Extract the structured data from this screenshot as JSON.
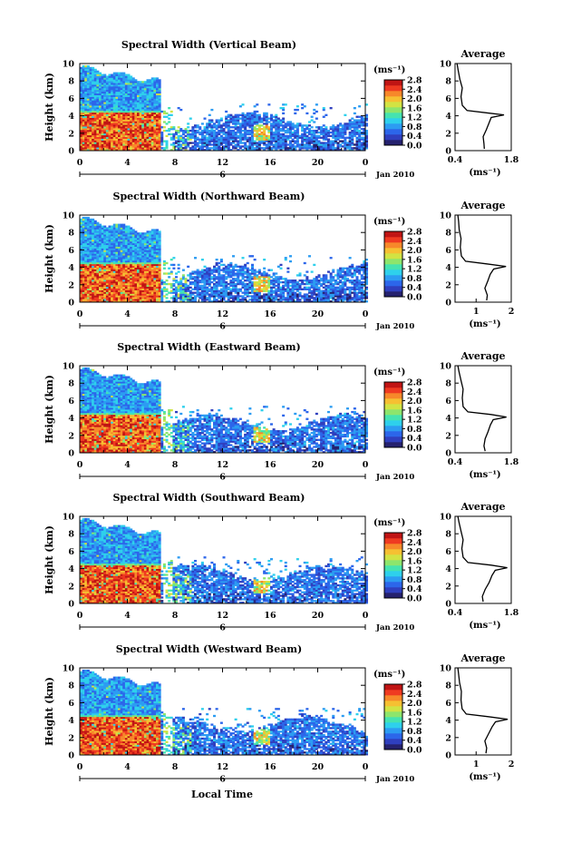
{
  "figure": {
    "xlabel": "Local Time",
    "date_label": "Jan 2010",
    "day_label": "6",
    "unit_label": "(ms⁻¹)",
    "avg_title": "Average",
    "avg_xlabel": "(ms⁻¹)",
    "ylabel": "Height (km)"
  },
  "colormap": [
    "#25216e",
    "#2f3fbe",
    "#2c66ea",
    "#2c9cf2",
    "#2ed0ec",
    "#45e3b0",
    "#8de56c",
    "#d2e343",
    "#f6c032",
    "#f7882a",
    "#ef3a21",
    "#c01414"
  ],
  "chart_data": [
    {
      "type": "heatmap",
      "title": "Spectral Width (Vertical Beam)",
      "x": [
        0,
        4,
        8,
        12,
        16,
        20,
        24
      ],
      "xlim": [
        0,
        24
      ],
      "x_ticklabels": [
        "0",
        "4",
        "8",
        "12",
        "16",
        "20",
        "0"
      ],
      "y_ticks": [
        0,
        2,
        4,
        6,
        8,
        10
      ],
      "ylim": [
        0,
        10
      ],
      "colorbar": {
        "ticks": [
          "0.0",
          "0.4",
          "0.8",
          "1.2",
          "1.6",
          "2.0",
          "2.4",
          "2.8"
        ],
        "range": [
          0,
          2.8
        ]
      },
      "average": {
        "xlim": [
          0.4,
          1.8
        ],
        "xticks": [
          "0.4",
          "1.8"
        ],
        "profile": [
          [
            0.2,
            1.13
          ],
          [
            0.8,
            1.12
          ],
          [
            1.6,
            1.1
          ],
          [
            2.4,
            1.18
          ],
          [
            3.2,
            1.25
          ],
          [
            3.8,
            1.3
          ],
          [
            4.1,
            1.62
          ],
          [
            4.3,
            1.25
          ],
          [
            4.6,
            0.7
          ],
          [
            5.2,
            0.58
          ],
          [
            6.2,
            0.55
          ],
          [
            7.2,
            0.58
          ],
          [
            8.2,
            0.52
          ],
          [
            9.2,
            0.48
          ],
          [
            10,
            0.45
          ]
        ]
      }
    },
    {
      "type": "heatmap",
      "title": "Spectral Width (Northward Beam)",
      "x": [
        0,
        4,
        8,
        12,
        16,
        20,
        24
      ],
      "xlim": [
        0,
        24
      ],
      "x_ticklabels": [
        "0",
        "4",
        "8",
        "12",
        "16",
        "20",
        "0"
      ],
      "y_ticks": [
        0,
        2,
        4,
        6,
        8,
        10
      ],
      "ylim": [
        0,
        10
      ],
      "colorbar": {
        "ticks": [
          "0.0",
          "0.4",
          "0.8",
          "1.2",
          "1.6",
          "2.0",
          "2.4",
          "2.8"
        ],
        "range": [
          0,
          2.8
        ]
      },
      "average": {
        "xlim": [
          0.4,
          2.0
        ],
        "xticks": [
          "1",
          "2"
        ],
        "profile": [
          [
            0.2,
            1.3
          ],
          [
            0.8,
            1.32
          ],
          [
            1.6,
            1.25
          ],
          [
            2.4,
            1.33
          ],
          [
            3.2,
            1.4
          ],
          [
            3.8,
            1.5
          ],
          [
            4.1,
            1.85
          ],
          [
            4.4,
            1.3
          ],
          [
            4.7,
            0.7
          ],
          [
            5.3,
            0.58
          ],
          [
            6.3,
            0.55
          ],
          [
            7.3,
            0.57
          ],
          [
            8.3,
            0.52
          ],
          [
            9.3,
            0.5
          ],
          [
            10,
            0.48
          ]
        ]
      }
    },
    {
      "type": "heatmap",
      "title": "Spectral Width (Eastward Beam)",
      "x": [
        0,
        4,
        8,
        12,
        16,
        20,
        24
      ],
      "xlim": [
        0,
        24
      ],
      "x_ticklabels": [
        "0",
        "4",
        "8",
        "12",
        "16",
        "20",
        "0"
      ],
      "y_ticks": [
        0,
        2,
        4,
        6,
        8,
        10
      ],
      "ylim": [
        0,
        10
      ],
      "colorbar": {
        "ticks": [
          "0.0",
          "0.4",
          "0.8",
          "1.2",
          "1.6",
          "2.0",
          "2.4",
          "2.8"
        ],
        "range": [
          0,
          2.8
        ]
      },
      "average": {
        "xlim": [
          0.4,
          1.8
        ],
        "xticks": [
          "0.4",
          "1.8"
        ],
        "profile": [
          [
            0.2,
            1.15
          ],
          [
            0.8,
            1.12
          ],
          [
            1.6,
            1.15
          ],
          [
            2.4,
            1.22
          ],
          [
            3.2,
            1.28
          ],
          [
            3.8,
            1.35
          ],
          [
            4.1,
            1.68
          ],
          [
            4.4,
            1.3
          ],
          [
            4.7,
            0.72
          ],
          [
            5.3,
            0.6
          ],
          [
            6.3,
            0.58
          ],
          [
            7.3,
            0.6
          ],
          [
            8.3,
            0.55
          ],
          [
            9.3,
            0.5
          ],
          [
            10,
            0.47
          ]
        ]
      }
    },
    {
      "type": "heatmap",
      "title": "Spectral Width (Southward Beam)",
      "x": [
        0,
        4,
        8,
        12,
        16,
        20,
        24
      ],
      "xlim": [
        0,
        24
      ],
      "x_ticklabels": [
        "0",
        "4",
        "8",
        "12",
        "16",
        "20",
        "0"
      ],
      "y_ticks": [
        0,
        2,
        4,
        6,
        8,
        10
      ],
      "ylim": [
        0,
        10
      ],
      "colorbar": {
        "ticks": [
          "0.0",
          "0.4",
          "0.8",
          "1.2",
          "1.6",
          "2.0",
          "2.4",
          "2.8"
        ],
        "range": [
          0,
          2.8
        ]
      },
      "average": {
        "xlim": [
          0.4,
          1.8
        ],
        "xticks": [
          "0.4",
          "1.8"
        ],
        "profile": [
          [
            0.2,
            1.1
          ],
          [
            0.8,
            1.08
          ],
          [
            1.6,
            1.15
          ],
          [
            2.4,
            1.25
          ],
          [
            3.2,
            1.32
          ],
          [
            3.8,
            1.4
          ],
          [
            4.1,
            1.7
          ],
          [
            4.4,
            1.3
          ],
          [
            4.7,
            0.72
          ],
          [
            5.3,
            0.6
          ],
          [
            6.3,
            0.57
          ],
          [
            7.3,
            0.6
          ],
          [
            8.3,
            0.55
          ],
          [
            9.3,
            0.5
          ],
          [
            10,
            0.47
          ]
        ]
      }
    },
    {
      "type": "heatmap",
      "title": "Spectral Width (Westward Beam)",
      "x": [
        0,
        4,
        8,
        12,
        16,
        20,
        24
      ],
      "xlim": [
        0,
        24
      ],
      "x_ticklabels": [
        "0",
        "4",
        "8",
        "12",
        "16",
        "20",
        "0"
      ],
      "y_ticks": [
        0,
        2,
        4,
        6,
        8,
        10
      ],
      "ylim": [
        0,
        10
      ],
      "colorbar": {
        "ticks": [
          "0.0",
          "0.4",
          "0.8",
          "1.2",
          "1.6",
          "2.0",
          "2.4",
          "2.8"
        ],
        "range": [
          0,
          2.8
        ]
      },
      "average": {
        "xlim": [
          0.4,
          2.0
        ],
        "xticks": [
          "1",
          "2"
        ],
        "profile": [
          [
            0.2,
            1.28
          ],
          [
            0.8,
            1.3
          ],
          [
            1.6,
            1.25
          ],
          [
            2.4,
            1.35
          ],
          [
            3.2,
            1.45
          ],
          [
            3.8,
            1.55
          ],
          [
            4.1,
            1.9
          ],
          [
            4.4,
            1.35
          ],
          [
            4.7,
            0.72
          ],
          [
            5.3,
            0.6
          ],
          [
            6.3,
            0.57
          ],
          [
            7.3,
            0.58
          ],
          [
            8.3,
            0.53
          ],
          [
            9.3,
            0.5
          ],
          [
            10,
            0.48
          ]
        ]
      }
    }
  ]
}
